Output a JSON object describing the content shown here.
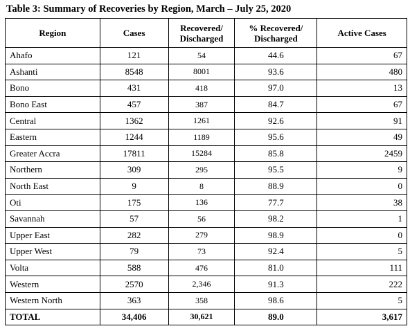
{
  "title": "Table 3: Summary of Recoveries by Region, March – July 25, 2020",
  "table": {
    "header": [
      "Region",
      "Cases",
      "Recovered/ Discharged",
      "% Recovered/ Discharged",
      "Active Cases"
    ],
    "rows": [
      [
        "Ahafo",
        "121",
        "54",
        "44.6",
        "67"
      ],
      [
        "Ashanti",
        "8548",
        "8001",
        "93.6",
        "480"
      ],
      [
        "Bono",
        "431",
        "418",
        "97.0",
        "13"
      ],
      [
        "Bono East",
        "457",
        "387",
        "84.7",
        "67"
      ],
      [
        "Central",
        "1362",
        "1261",
        "92.6",
        "91"
      ],
      [
        "Eastern",
        "1244",
        "1189",
        "95.6",
        "49"
      ],
      [
        "Greater Accra",
        "17811",
        "15284",
        "85.8",
        "2459"
      ],
      [
        "Northern",
        "309",
        "295",
        "95.5",
        "9"
      ],
      [
        "North East",
        "9",
        "8",
        "88.9",
        "0"
      ],
      [
        "Oti",
        "175",
        "136",
        "77.7",
        "38"
      ],
      [
        "Savannah",
        "57",
        "56",
        "98.2",
        "1"
      ],
      [
        "Upper East",
        "282",
        "279",
        "98.9",
        "0"
      ],
      [
        "Upper West",
        "79",
        "73",
        "92.4",
        "5"
      ],
      [
        "Volta",
        "588",
        "476",
        "81.0",
        "111"
      ],
      [
        "Western",
        "2570",
        "2,346",
        "91.3",
        "222"
      ],
      [
        "Western North",
        "363",
        "358",
        "98.6",
        "5"
      ]
    ],
    "total": [
      "TOTAL",
      "34,406",
      "30,621",
      "89.0",
      "3,617"
    ]
  }
}
